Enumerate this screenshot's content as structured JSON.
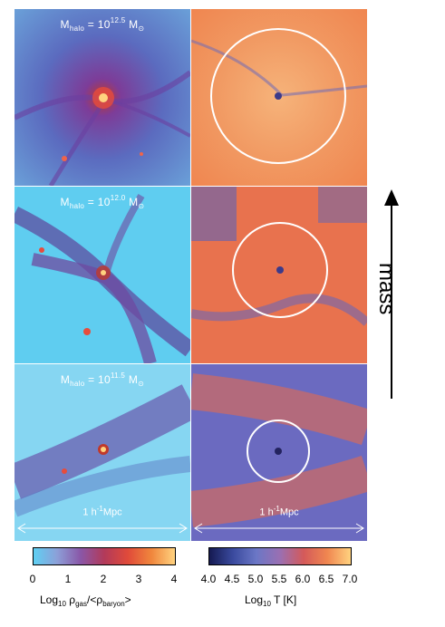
{
  "rows": [
    {
      "mass_exp": "12.5"
    },
    {
      "mass_exp": "12.0"
    },
    {
      "mass_exp": "11.5"
    }
  ],
  "halo_prefix": "M",
  "halo_sub": "halo",
  "halo_eq": " = 10",
  "halo_unit": " M",
  "sun_symbol": "⊙",
  "scale_label": "1 h",
  "scale_sup": "-1",
  "scale_unit": "Mpc",
  "mass_label": "mass",
  "colorbar_density": {
    "ticks": [
      "0",
      "1",
      "2",
      "3",
      "4"
    ],
    "label_prefix": "Log",
    "label_sub": "10",
    "label_rest": " ρ",
    "label_sub2": "gas",
    "label_mid": "/<ρ",
    "label_sub3": "baryon",
    "label_end": ">"
  },
  "colorbar_temp": {
    "ticks": [
      "4.0",
      "4.5",
      "5.0",
      "5.5",
      "6.0",
      "6.5",
      "7.0"
    ],
    "label_prefix": "Log",
    "label_sub": "10",
    "label_rest": " T [K]"
  }
}
